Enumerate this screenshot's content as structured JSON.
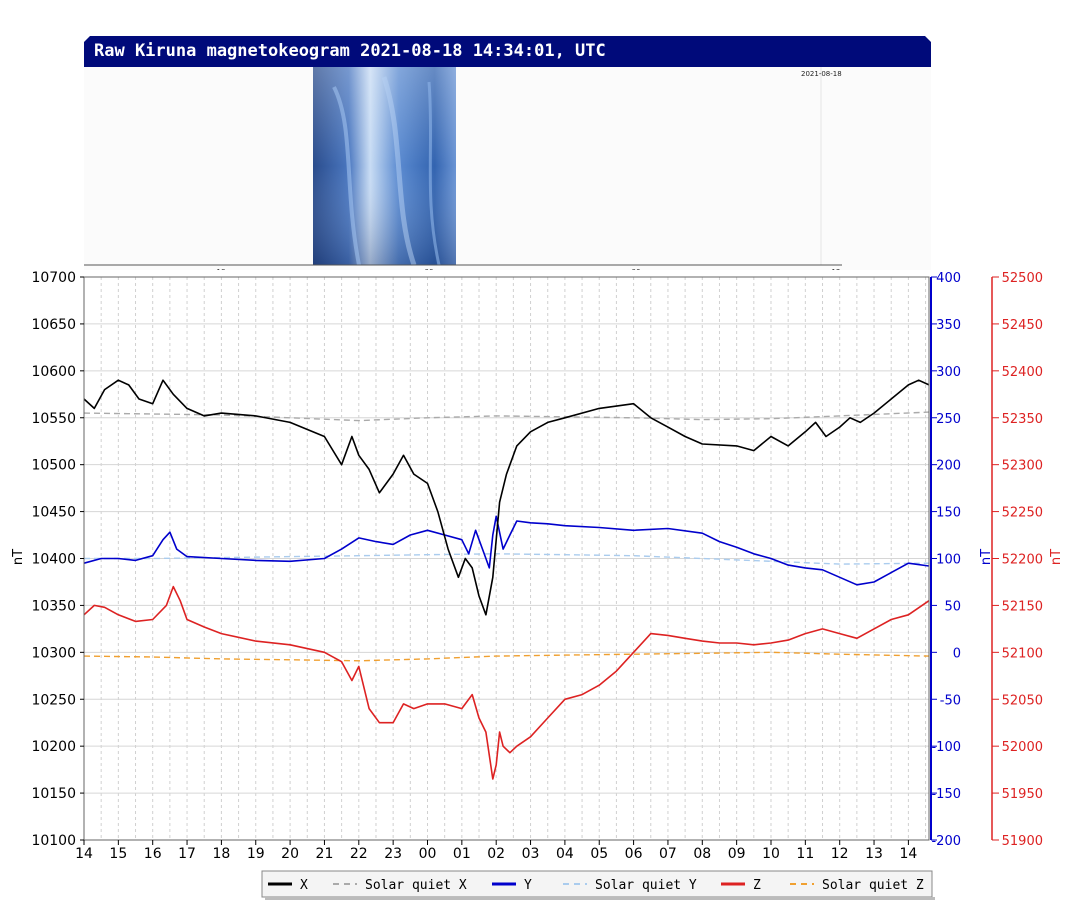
{
  "title": "Raw Kiruna magnetokeogram 2021-08-18 14:34:01, UTC",
  "keogram": {
    "date_label": "2021-08-18",
    "tick_labels": [
      "18",
      "00",
      "06",
      "12"
    ]
  },
  "chart_data": {
    "type": "line",
    "x_tick_labels": [
      "14",
      "15",
      "16",
      "17",
      "18",
      "19",
      "20",
      "21",
      "22",
      "23",
      "00",
      "01",
      "02",
      "03",
      "04",
      "05",
      "06",
      "07",
      "08",
      "09",
      "10",
      "11",
      "12",
      "13",
      "14"
    ],
    "x_range_hours": [
      0,
      24.6
    ],
    "y_left": {
      "label": "nT",
      "range": [
        10100,
        10700
      ],
      "ticks": [
        10100,
        10150,
        10200,
        10250,
        10300,
        10350,
        10400,
        10450,
        10500,
        10550,
        10600,
        10650,
        10700
      ],
      "color": "#000000"
    },
    "y_mid": {
      "label": "nT",
      "range": [
        -200,
        400
      ],
      "ticks": [
        -200,
        -150,
        -100,
        -50,
        0,
        50,
        100,
        150,
        200,
        250,
        300,
        350,
        400
      ],
      "color": "#0000cc"
    },
    "y_right": {
      "label": "nT",
      "range": [
        51900,
        52500
      ],
      "ticks": [
        51900,
        51950,
        52000,
        52050,
        52100,
        52150,
        52200,
        52250,
        52300,
        52350,
        52400,
        52450,
        52500
      ],
      "color": "#dd2222"
    },
    "grid": true,
    "legend_position": "bottom-right",
    "series": [
      {
        "name": "X",
        "axis": "left",
        "color": "#000000",
        "style": "solid",
        "x": [
          0,
          0.3,
          0.6,
          1.0,
          1.3,
          1.6,
          2.0,
          2.3,
          2.6,
          3.0,
          3.5,
          4.0,
          5.0,
          6.0,
          7.0,
          7.5,
          7.8,
          8.0,
          8.3,
          8.6,
          9.0,
          9.3,
          9.6,
          10.0,
          10.3,
          10.6,
          10.9,
          11.1,
          11.3,
          11.5,
          11.7,
          11.9,
          12.1,
          12.3,
          12.6,
          13.0,
          13.5,
          14.0,
          15.0,
          16.0,
          16.5,
          17.0,
          17.5,
          18.0,
          19.0,
          19.5,
          20.0,
          20.5,
          21.0,
          21.3,
          21.6,
          22.0,
          22.3,
          22.6,
          23.0,
          23.5,
          24.0,
          24.3,
          24.6
        ],
        "y": [
          10570,
          10560,
          10580,
          10590,
          10585,
          10570,
          10565,
          10590,
          10575,
          10560,
          10552,
          10555,
          10552,
          10545,
          10530,
          10500,
          10530,
          10510,
          10495,
          10470,
          10490,
          10510,
          10490,
          10480,
          10450,
          10410,
          10380,
          10400,
          10390,
          10360,
          10340,
          10380,
          10460,
          10490,
          10520,
          10535,
          10545,
          10550,
          10560,
          10565,
          10550,
          10540,
          10530,
          10522,
          10520,
          10515,
          10530,
          10520,
          10535,
          10545,
          10530,
          10540,
          10550,
          10545,
          10555,
          10570,
          10585,
          10590,
          10585
        ]
      },
      {
        "name": "Solar quiet X",
        "axis": "left",
        "color": "#aaaaaa",
        "style": "dashed",
        "x": [
          0,
          2,
          4,
          6,
          8,
          10,
          12,
          14,
          16,
          18,
          20,
          22,
          24.6
        ],
        "y": [
          10555,
          10554,
          10553,
          10550,
          10547,
          10550,
          10552,
          10551,
          10550,
          10548,
          10549,
          10552,
          10556
        ]
      },
      {
        "name": "Y",
        "axis": "mid",
        "color": "#0000cc",
        "style": "solid",
        "x": [
          0,
          0.5,
          1.0,
          1.5,
          2.0,
          2.3,
          2.5,
          2.7,
          3.0,
          4.0,
          5.0,
          6.0,
          7.0,
          7.5,
          8.0,
          8.5,
          9.0,
          9.5,
          10.0,
          10.5,
          11.0,
          11.2,
          11.4,
          11.6,
          11.8,
          11.9,
          12.0,
          12.2,
          12.4,
          12.6,
          13.0,
          13.5,
          14.0,
          15.0,
          16.0,
          17.0,
          18.0,
          18.5,
          19.0,
          19.5,
          20.0,
          20.5,
          21.0,
          21.5,
          22.0,
          22.5,
          23.0,
          23.5,
          24.0,
          24.6
        ],
        "y": [
          95,
          100,
          100,
          98,
          103,
          120,
          128,
          110,
          102,
          100,
          98,
          97,
          100,
          110,
          122,
          118,
          115,
          125,
          130,
          125,
          120,
          105,
          130,
          110,
          90,
          125,
          145,
          110,
          125,
          140,
          138,
          137,
          135,
          133,
          130,
          132,
          127,
          118,
          112,
          105,
          100,
          93,
          90,
          88,
          80,
          72,
          75,
          85,
          95,
          92
        ]
      },
      {
        "name": "Solar quiet Y",
        "axis": "mid",
        "color": "#aaccee",
        "style": "dashed",
        "x": [
          0,
          2,
          4,
          6,
          8,
          10,
          12,
          14,
          16,
          18,
          20,
          22,
          24.6
        ],
        "y": [
          100,
          100,
          101,
          102,
          103,
          104,
          105,
          104,
          103,
          100,
          97,
          94,
          95
        ]
      },
      {
        "name": "Z",
        "axis": "right",
        "color": "#dd2222",
        "style": "solid",
        "x": [
          0,
          0.3,
          0.6,
          1.0,
          1.5,
          2.0,
          2.4,
          2.6,
          2.8,
          3.0,
          3.5,
          4.0,
          5.0,
          6.0,
          7.0,
          7.5,
          7.8,
          8.0,
          8.3,
          8.6,
          9.0,
          9.3,
          9.6,
          10.0,
          10.5,
          11.0,
          11.3,
          11.5,
          11.7,
          11.9,
          12.0,
          12.1,
          12.2,
          12.4,
          12.6,
          13.0,
          13.5,
          14.0,
          14.5,
          15.0,
          15.5,
          16.0,
          16.5,
          17.0,
          17.5,
          18.0,
          18.5,
          19.0,
          19.5,
          20.0,
          20.5,
          21.0,
          21.5,
          22.0,
          22.5,
          23.0,
          23.5,
          24.0,
          24.6
        ],
        "y": [
          52140,
          52150,
          52148,
          52140,
          52133,
          52135,
          52150,
          52170,
          52155,
          52135,
          52127,
          52120,
          52112,
          52108,
          52100,
          52090,
          52070,
          52085,
          52040,
          52025,
          52025,
          52045,
          52040,
          52045,
          52045,
          52040,
          52055,
          52030,
          52015,
          51965,
          51980,
          52015,
          52000,
          51993,
          52000,
          52010,
          52030,
          52050,
          52055,
          52065,
          52080,
          52100,
          52120,
          52118,
          52115,
          52112,
          52110,
          52110,
          52108,
          52110,
          52113,
          52120,
          52125,
          52120,
          52115,
          52125,
          52135,
          52140,
          52155
        ]
      },
      {
        "name": "Solar quiet Z",
        "axis": "right",
        "color": "#f0a030",
        "style": "dashed",
        "x": [
          0,
          2,
          4,
          6,
          8,
          10,
          12,
          14,
          16,
          18,
          20,
          22,
          24.6
        ],
        "y": [
          52096,
          52095,
          52093,
          52092,
          52091,
          52093,
          52096,
          52097,
          52098,
          52099,
          52100,
          52098,
          52096
        ]
      }
    ]
  }
}
